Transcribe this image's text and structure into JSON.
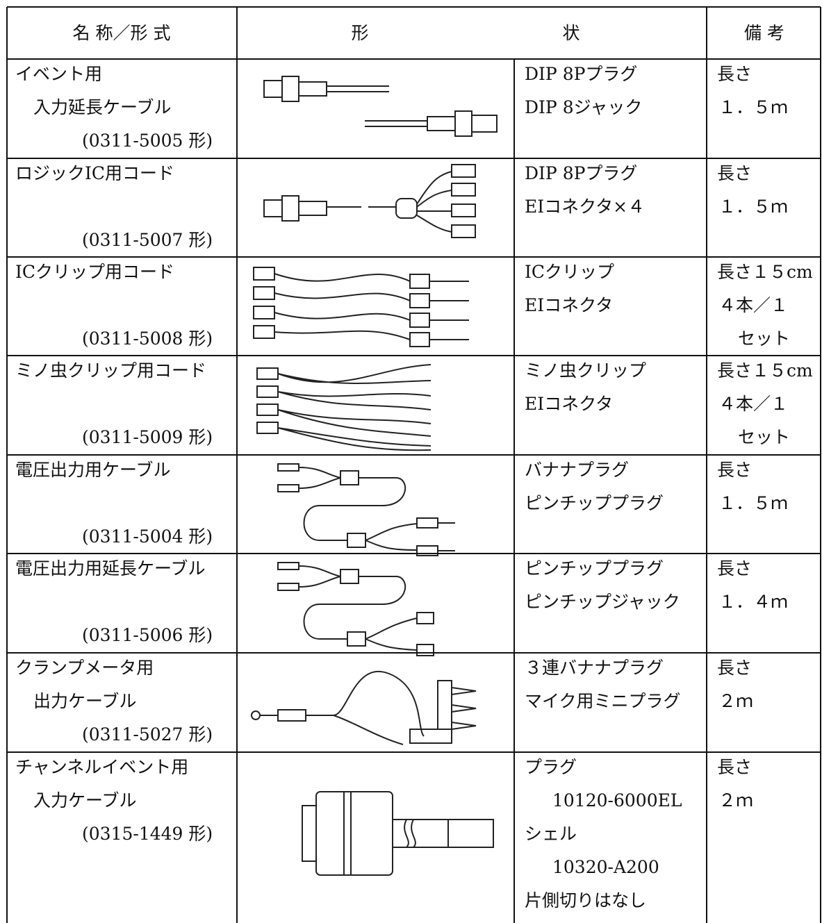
{
  "header": {
    "name": "名 称／形 式",
    "shape": [
      "形",
      "状"
    ],
    "note": "備 考"
  },
  "rows": [
    {
      "name": [
        "イベント用",
        "入力延長ケーブル",
        "(0311-5005 形)"
      ],
      "spec": [
        "DIP 8Pプラグ",
        "DIP 8ジャック"
      ],
      "note": [
        "長さ",
        "１．５ｍ"
      ]
    },
    {
      "name": [
        "ロジックIC用コード",
        "(0311-5007 形)"
      ],
      "spec": [
        "DIP 8Pプラグ",
        "EIコネクタ×４"
      ],
      "note": [
        "長さ",
        "１．５ｍ"
      ]
    },
    {
      "name": [
        "ICクリップ用コード",
        "(0311-5008 形)"
      ],
      "spec": [
        "ICクリップ",
        "EIコネクタ"
      ],
      "note": [
        "長さ１５cm",
        "４本／１",
        "セット"
      ]
    },
    {
      "name": [
        "ミノ虫クリップ用コード",
        "(0311-5009 形)"
      ],
      "spec": [
        "ミノ虫クリップ",
        "EIコネクタ"
      ],
      "note": [
        "長さ１５cm",
        "４本／１",
        "セット"
      ]
    },
    {
      "name": [
        "電圧出力用ケーブル",
        "(0311-5004 形)"
      ],
      "spec": [
        "バナナプラグ",
        "ピンチッププラグ"
      ],
      "note": [
        "長さ",
        "１．５ｍ"
      ]
    },
    {
      "name": [
        "電圧出力用延長ケーブル",
        "(0311-5006 形)"
      ],
      "spec": [
        "ピンチッププラグ",
        "ピンチップジャック"
      ],
      "note": [
        "長さ",
        "１．４ｍ"
      ]
    },
    {
      "name": [
        "クランプメータ用",
        "出力ケーブル",
        "(0311-5027 形)"
      ],
      "spec": [
        "３連バナナプラグ",
        "マイク用ミニプラグ"
      ],
      "note": [
        "長さ",
        "２ｍ"
      ]
    },
    {
      "name": [
        "チャンネルイベント用",
        "入力ケーブル",
        "(0315-1449 形)"
      ],
      "spec": [
        "プラグ",
        "10120-6000EL",
        "シェル",
        "10320-A200",
        "片側切りはなし"
      ],
      "note": [
        "長さ",
        "２ｍ"
      ]
    }
  ]
}
